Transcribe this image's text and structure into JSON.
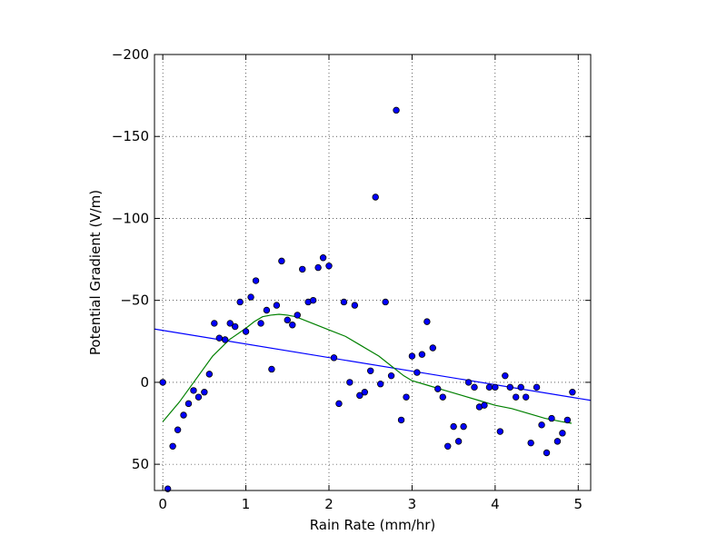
{
  "chart_data": {
    "type": "scatter",
    "title": "",
    "xlabel": "Rain Rate (mm/hr)",
    "ylabel": "Potential Gradient (V/m)",
    "xlim": [
      -0.1,
      5.15
    ],
    "ylim": [
      66,
      -200
    ],
    "y_inverted": true,
    "grid": true,
    "grid_style": "dotted",
    "x_ticks": [
      0,
      1,
      2,
      3,
      4,
      5
    ],
    "x_tick_labels": [
      "0",
      "1",
      "2",
      "3",
      "4",
      "5"
    ],
    "y_ticks": [
      -200,
      -150,
      -100,
      -50,
      0,
      50
    ],
    "y_tick_labels": [
      "−200",
      "−150",
      "−100",
      "−50",
      "0",
      "50"
    ],
    "colors": {
      "points": "#0000ff",
      "point_edge": "#000000",
      "linear_fit": "#0000ff",
      "smooth_fit": "#008000"
    },
    "series": [
      {
        "kind": "scatter",
        "points": [
          [
            0.0,
            0
          ],
          [
            0.06,
            65
          ],
          [
            0.12,
            39
          ],
          [
            0.18,
            29
          ],
          [
            0.25,
            20
          ],
          [
            0.31,
            13
          ],
          [
            0.37,
            5
          ],
          [
            0.43,
            9
          ],
          [
            0.5,
            6
          ],
          [
            0.56,
            -5
          ],
          [
            0.62,
            -36
          ],
          [
            0.68,
            -27
          ],
          [
            0.75,
            -26
          ],
          [
            0.81,
            -36
          ],
          [
            0.87,
            -34
          ],
          [
            0.93,
            -49
          ],
          [
            1.0,
            -31
          ],
          [
            1.06,
            -52
          ],
          [
            1.12,
            -62
          ],
          [
            1.18,
            -36
          ],
          [
            1.25,
            -44
          ],
          [
            1.31,
            -8
          ],
          [
            1.37,
            -47
          ],
          [
            1.43,
            -74
          ],
          [
            1.5,
            -38
          ],
          [
            1.56,
            -35
          ],
          [
            1.62,
            -41
          ],
          [
            1.68,
            -69
          ],
          [
            1.75,
            -49
          ],
          [
            1.81,
            -50
          ],
          [
            1.87,
            -70
          ],
          [
            1.93,
            -76
          ],
          [
            2.0,
            -71
          ],
          [
            2.06,
            -15
          ],
          [
            2.12,
            13
          ],
          [
            2.18,
            -49
          ],
          [
            2.25,
            0
          ],
          [
            2.31,
            -47
          ],
          [
            2.37,
            8
          ],
          [
            2.43,
            6
          ],
          [
            2.5,
            -7
          ],
          [
            2.56,
            -113
          ],
          [
            2.62,
            1
          ],
          [
            2.68,
            -49
          ],
          [
            2.75,
            -4
          ],
          [
            2.81,
            -166
          ],
          [
            2.87,
            23
          ],
          [
            2.93,
            9
          ],
          [
            3.0,
            -16
          ],
          [
            3.06,
            -6
          ],
          [
            3.12,
            -17
          ],
          [
            3.18,
            -37
          ],
          [
            3.25,
            -21
          ],
          [
            3.31,
            4
          ],
          [
            3.37,
            9
          ],
          [
            3.43,
            39
          ],
          [
            3.5,
            27
          ],
          [
            3.56,
            36
          ],
          [
            3.62,
            27
          ],
          [
            3.68,
            0
          ],
          [
            3.75,
            3
          ],
          [
            3.81,
            15
          ],
          [
            3.87,
            14
          ],
          [
            3.93,
            3
          ],
          [
            4.0,
            3
          ],
          [
            4.06,
            30
          ],
          [
            4.12,
            -4
          ],
          [
            4.18,
            3
          ],
          [
            4.25,
            9
          ],
          [
            4.31,
            3
          ],
          [
            4.37,
            9
          ],
          [
            4.43,
            37
          ],
          [
            4.5,
            3
          ],
          [
            4.56,
            26
          ],
          [
            4.62,
            43
          ],
          [
            4.68,
            22
          ],
          [
            4.75,
            36
          ],
          [
            4.81,
            31
          ],
          [
            4.87,
            23
          ],
          [
            4.93,
            6
          ]
        ]
      },
      {
        "kind": "line",
        "points": [
          [
            -0.1,
            -32.5
          ],
          [
            5.15,
            11
          ]
        ]
      },
      {
        "kind": "line",
        "points": [
          [
            0.0,
            24
          ],
          [
            0.2,
            12
          ],
          [
            0.4,
            -2
          ],
          [
            0.6,
            -16
          ],
          [
            0.8,
            -26
          ],
          [
            1.0,
            -33
          ],
          [
            1.1,
            -37
          ],
          [
            1.2,
            -40
          ],
          [
            1.3,
            -41
          ],
          [
            1.4,
            -41.5
          ],
          [
            1.5,
            -41
          ],
          [
            1.6,
            -40
          ],
          [
            1.8,
            -36
          ],
          [
            2.0,
            -32
          ],
          [
            2.2,
            -28
          ],
          [
            2.4,
            -22
          ],
          [
            2.6,
            -16
          ],
          [
            2.75,
            -10
          ],
          [
            2.9,
            -4
          ],
          [
            3.0,
            -1
          ],
          [
            3.2,
            2
          ],
          [
            3.4,
            5
          ],
          [
            3.6,
            8
          ],
          [
            3.8,
            11
          ],
          [
            4.0,
            14
          ],
          [
            4.2,
            16
          ],
          [
            4.4,
            19
          ],
          [
            4.6,
            22
          ],
          [
            4.8,
            24
          ],
          [
            4.92,
            25
          ]
        ]
      }
    ]
  }
}
